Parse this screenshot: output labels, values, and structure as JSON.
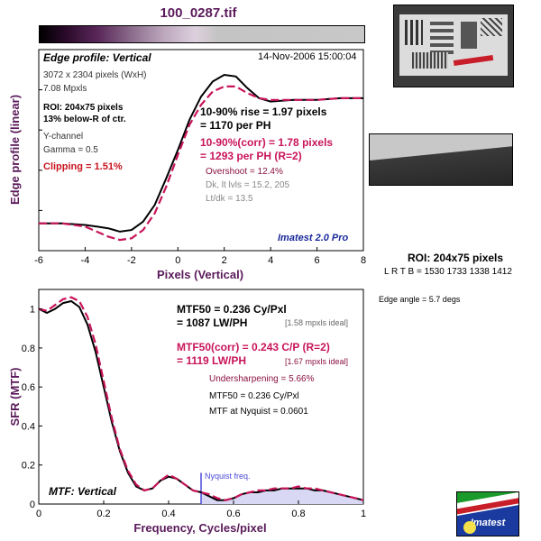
{
  "window": {
    "title": "100_0287.tif"
  },
  "edge_panel": {
    "profile_label": "Edge profile: Vertical",
    "date": "14-Nov-2006 15:00:04",
    "info": [
      "3072 x 2304 pixels (WxH)",
      "7.08 Mpxls"
    ],
    "roi_lines": [
      "ROI: 204x75 pixels",
      "13% below-R of ctr."
    ],
    "channel": "Y-channel",
    "gamma": "Gamma = 0.5",
    "clipping": "Clipping =   1.51%",
    "rise_lines": [
      "10-90% rise = 1.97 pixels",
      "= 1170 per PH"
    ],
    "rise_corr_lines": [
      "10-90%(corr) = 1.78 pixels",
      "= 1293 per PH   (R=2)"
    ],
    "overshoot": "Overshoot = 12.4%",
    "levels": [
      "Dk, lt lvls = 15.2, 205",
      "Lt/dk = 13.5"
    ],
    "brand": "Imatest 2.0 Pro"
  },
  "sfr_panel": {
    "mtf50_lines": [
      "MTF50 = 0.236 Cy/Pxl",
      "= 1087 LW/PH"
    ],
    "mtf50_ideal": "[1.58 mpxls ideal]",
    "mtf50_corr_lines": [
      "MTF50(corr) = 0.243 C/P  (R=2)",
      "= 1119 LW/PH"
    ],
    "mtf50_corr_ideal": "[1.67 mpxls ideal]",
    "undersharpening": "Undersharpening = 5.66%",
    "summary": [
      "MTF50 = 0.236 Cy/Pxl",
      "MTF at Nyquist = 0.0601"
    ],
    "nyquist_label": "Nyquist freq.",
    "profile_label": "MTF: Vertical"
  },
  "right_panel": {
    "roi_title": "ROI: 204x75 pixels",
    "roi_coords": "L R  T B = 1530 1733  1338 1412",
    "edge_angle": "Edge angle = 5.7 degs",
    "logo_text": "Imatest"
  },
  "colors": {
    "uncorrected": "#000000",
    "corrected": "#c8145a",
    "nyquist": "#4a4ad8",
    "fill": "#d8d8f4",
    "title": "#5a1a5a"
  },
  "chart_data": [
    {
      "type": "line",
      "xlabel": "Pixels (Vertical)",
      "ylabel": "Edge profile (linear)",
      "xlim": [
        -6,
        8
      ],
      "xticks": [
        -6,
        -4,
        -2,
        0,
        2,
        4,
        6,
        8
      ],
      "grid": false,
      "series": [
        {
          "x": [
            -6,
            -5,
            -4,
            -3.5,
            -3,
            -2.5,
            -2,
            -1.5,
            -1,
            -0.5,
            0,
            0.5,
            1,
            1.5,
            2,
            2.5,
            3,
            3.5,
            4,
            5,
            6,
            7,
            8
          ],
          "y": [
            0.11,
            0.11,
            0.1,
            0.09,
            0.08,
            0.06,
            0.07,
            0.12,
            0.22,
            0.38,
            0.55,
            0.73,
            0.87,
            0.96,
            1.0,
            0.99,
            0.92,
            0.86,
            0.84,
            0.85,
            0.85,
            0.86,
            0.86
          ]
        },
        {
          "x": [
            -6,
            -5,
            -4,
            -3.5,
            -3,
            -2.5,
            -2,
            -1.5,
            -1,
            -0.5,
            0,
            0.5,
            1,
            1.5,
            2,
            2.5,
            3,
            3.5,
            4,
            5,
            6,
            7,
            8
          ],
          "y": [
            0.11,
            0.11,
            0.09,
            0.06,
            0.03,
            0.01,
            0.02,
            0.07,
            0.17,
            0.33,
            0.52,
            0.7,
            0.82,
            0.9,
            0.93,
            0.93,
            0.89,
            0.86,
            0.85,
            0.85,
            0.85,
            0.86,
            0.86
          ]
        }
      ]
    },
    {
      "type": "area",
      "xlabel": "Frequency, Cycles/pixel",
      "ylabel": "SFR (MTF)",
      "xlim": [
        0,
        1
      ],
      "ylim": [
        0,
        1.1
      ],
      "xticks": [
        0,
        0.2,
        0.4,
        0.6,
        0.8,
        1
      ],
      "yticks": [
        0,
        0.2,
        0.4,
        0.6,
        0.8,
        1
      ],
      "grid": false,
      "nyquist_x": 0.5,
      "series": [
        {
          "x": [
            0,
            0.025,
            0.05,
            0.075,
            0.1,
            0.125,
            0.15,
            0.175,
            0.2,
            0.225,
            0.25,
            0.275,
            0.3,
            0.325,
            0.35,
            0.375,
            0.4,
            0.425,
            0.45,
            0.475,
            0.5,
            0.525,
            0.55,
            0.575,
            0.6,
            0.625,
            0.65,
            0.675,
            0.7,
            0.725,
            0.75,
            0.775,
            0.8,
            0.825,
            0.85,
            0.875,
            0.9,
            0.925,
            0.95,
            0.975,
            1
          ],
          "y": [
            1.0,
            0.98,
            1.0,
            1.03,
            1.04,
            1.01,
            0.92,
            0.78,
            0.6,
            0.42,
            0.27,
            0.16,
            0.09,
            0.07,
            0.08,
            0.12,
            0.14,
            0.13,
            0.1,
            0.07,
            0.06,
            0.04,
            0.02,
            0.02,
            0.03,
            0.05,
            0.06,
            0.06,
            0.07,
            0.07,
            0.08,
            0.08,
            0.08,
            0.08,
            0.07,
            0.07,
            0.06,
            0.05,
            0.04,
            0.03,
            0.02
          ]
        },
        {
          "x": [
            0,
            0.025,
            0.05,
            0.075,
            0.1,
            0.125,
            0.15,
            0.175,
            0.2,
            0.225,
            0.25,
            0.275,
            0.3,
            0.325,
            0.35,
            0.375,
            0.4,
            0.425,
            0.45,
            0.475,
            0.5,
            0.525,
            0.55,
            0.575,
            0.6,
            0.625,
            0.65,
            0.675,
            0.7,
            0.725,
            0.75,
            0.775,
            0.8,
            0.825,
            0.85,
            0.875,
            0.9,
            0.925,
            0.95,
            0.975,
            1
          ],
          "y": [
            1.0,
            0.99,
            1.02,
            1.05,
            1.06,
            1.04,
            0.96,
            0.82,
            0.63,
            0.44,
            0.28,
            0.17,
            0.1,
            0.07,
            0.08,
            0.12,
            0.15,
            0.13,
            0.1,
            0.07,
            0.06,
            0.05,
            0.03,
            0.02,
            0.03,
            0.05,
            0.06,
            0.07,
            0.07,
            0.08,
            0.08,
            0.08,
            0.09,
            0.08,
            0.08,
            0.07,
            0.06,
            0.05,
            0.04,
            0.03,
            0.02
          ]
        }
      ]
    }
  ]
}
